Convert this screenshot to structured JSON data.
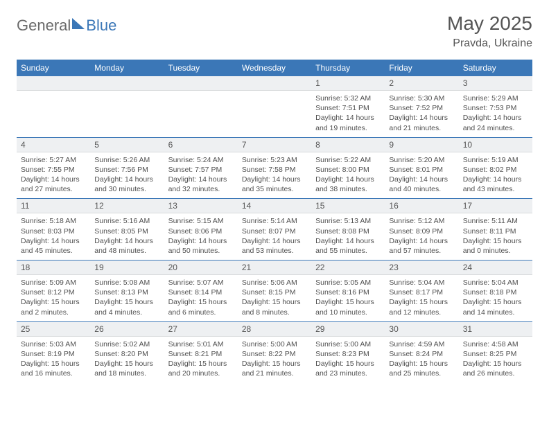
{
  "brand": {
    "part1": "General",
    "part2": "Blue"
  },
  "title": "May 2025",
  "location": "Pravda, Ukraine",
  "colors": {
    "accent": "#3b77b7",
    "header_text": "#ffffff",
    "daynum_bg": "#eef0f2",
    "text": "#505050",
    "title_text": "#555555",
    "background": "#ffffff"
  },
  "dayNames": [
    "Sunday",
    "Monday",
    "Tuesday",
    "Wednesday",
    "Thursday",
    "Friday",
    "Saturday"
  ],
  "weeks": [
    {
      "nums": [
        "",
        "",
        "",
        "",
        "1",
        "2",
        "3"
      ],
      "cells": [
        null,
        null,
        null,
        null,
        {
          "sunrise": "Sunrise: 5:32 AM",
          "sunset": "Sunset: 7:51 PM",
          "day1": "Daylight: 14 hours",
          "day2": "and 19 minutes."
        },
        {
          "sunrise": "Sunrise: 5:30 AM",
          "sunset": "Sunset: 7:52 PM",
          "day1": "Daylight: 14 hours",
          "day2": "and 21 minutes."
        },
        {
          "sunrise": "Sunrise: 5:29 AM",
          "sunset": "Sunset: 7:53 PM",
          "day1": "Daylight: 14 hours",
          "day2": "and 24 minutes."
        }
      ]
    },
    {
      "nums": [
        "4",
        "5",
        "6",
        "7",
        "8",
        "9",
        "10"
      ],
      "cells": [
        {
          "sunrise": "Sunrise: 5:27 AM",
          "sunset": "Sunset: 7:55 PM",
          "day1": "Daylight: 14 hours",
          "day2": "and 27 minutes."
        },
        {
          "sunrise": "Sunrise: 5:26 AM",
          "sunset": "Sunset: 7:56 PM",
          "day1": "Daylight: 14 hours",
          "day2": "and 30 minutes."
        },
        {
          "sunrise": "Sunrise: 5:24 AM",
          "sunset": "Sunset: 7:57 PM",
          "day1": "Daylight: 14 hours",
          "day2": "and 32 minutes."
        },
        {
          "sunrise": "Sunrise: 5:23 AM",
          "sunset": "Sunset: 7:58 PM",
          "day1": "Daylight: 14 hours",
          "day2": "and 35 minutes."
        },
        {
          "sunrise": "Sunrise: 5:22 AM",
          "sunset": "Sunset: 8:00 PM",
          "day1": "Daylight: 14 hours",
          "day2": "and 38 minutes."
        },
        {
          "sunrise": "Sunrise: 5:20 AM",
          "sunset": "Sunset: 8:01 PM",
          "day1": "Daylight: 14 hours",
          "day2": "and 40 minutes."
        },
        {
          "sunrise": "Sunrise: 5:19 AM",
          "sunset": "Sunset: 8:02 PM",
          "day1": "Daylight: 14 hours",
          "day2": "and 43 minutes."
        }
      ]
    },
    {
      "nums": [
        "11",
        "12",
        "13",
        "14",
        "15",
        "16",
        "17"
      ],
      "cells": [
        {
          "sunrise": "Sunrise: 5:18 AM",
          "sunset": "Sunset: 8:03 PM",
          "day1": "Daylight: 14 hours",
          "day2": "and 45 minutes."
        },
        {
          "sunrise": "Sunrise: 5:16 AM",
          "sunset": "Sunset: 8:05 PM",
          "day1": "Daylight: 14 hours",
          "day2": "and 48 minutes."
        },
        {
          "sunrise": "Sunrise: 5:15 AM",
          "sunset": "Sunset: 8:06 PM",
          "day1": "Daylight: 14 hours",
          "day2": "and 50 minutes."
        },
        {
          "sunrise": "Sunrise: 5:14 AM",
          "sunset": "Sunset: 8:07 PM",
          "day1": "Daylight: 14 hours",
          "day2": "and 53 minutes."
        },
        {
          "sunrise": "Sunrise: 5:13 AM",
          "sunset": "Sunset: 8:08 PM",
          "day1": "Daylight: 14 hours",
          "day2": "and 55 minutes."
        },
        {
          "sunrise": "Sunrise: 5:12 AM",
          "sunset": "Sunset: 8:09 PM",
          "day1": "Daylight: 14 hours",
          "day2": "and 57 minutes."
        },
        {
          "sunrise": "Sunrise: 5:11 AM",
          "sunset": "Sunset: 8:11 PM",
          "day1": "Daylight: 15 hours",
          "day2": "and 0 minutes."
        }
      ]
    },
    {
      "nums": [
        "18",
        "19",
        "20",
        "21",
        "22",
        "23",
        "24"
      ],
      "cells": [
        {
          "sunrise": "Sunrise: 5:09 AM",
          "sunset": "Sunset: 8:12 PM",
          "day1": "Daylight: 15 hours",
          "day2": "and 2 minutes."
        },
        {
          "sunrise": "Sunrise: 5:08 AM",
          "sunset": "Sunset: 8:13 PM",
          "day1": "Daylight: 15 hours",
          "day2": "and 4 minutes."
        },
        {
          "sunrise": "Sunrise: 5:07 AM",
          "sunset": "Sunset: 8:14 PM",
          "day1": "Daylight: 15 hours",
          "day2": "and 6 minutes."
        },
        {
          "sunrise": "Sunrise: 5:06 AM",
          "sunset": "Sunset: 8:15 PM",
          "day1": "Daylight: 15 hours",
          "day2": "and 8 minutes."
        },
        {
          "sunrise": "Sunrise: 5:05 AM",
          "sunset": "Sunset: 8:16 PM",
          "day1": "Daylight: 15 hours",
          "day2": "and 10 minutes."
        },
        {
          "sunrise": "Sunrise: 5:04 AM",
          "sunset": "Sunset: 8:17 PM",
          "day1": "Daylight: 15 hours",
          "day2": "and 12 minutes."
        },
        {
          "sunrise": "Sunrise: 5:04 AM",
          "sunset": "Sunset: 8:18 PM",
          "day1": "Daylight: 15 hours",
          "day2": "and 14 minutes."
        }
      ]
    },
    {
      "nums": [
        "25",
        "26",
        "27",
        "28",
        "29",
        "30",
        "31"
      ],
      "cells": [
        {
          "sunrise": "Sunrise: 5:03 AM",
          "sunset": "Sunset: 8:19 PM",
          "day1": "Daylight: 15 hours",
          "day2": "and 16 minutes."
        },
        {
          "sunrise": "Sunrise: 5:02 AM",
          "sunset": "Sunset: 8:20 PM",
          "day1": "Daylight: 15 hours",
          "day2": "and 18 minutes."
        },
        {
          "sunrise": "Sunrise: 5:01 AM",
          "sunset": "Sunset: 8:21 PM",
          "day1": "Daylight: 15 hours",
          "day2": "and 20 minutes."
        },
        {
          "sunrise": "Sunrise: 5:00 AM",
          "sunset": "Sunset: 8:22 PM",
          "day1": "Daylight: 15 hours",
          "day2": "and 21 minutes."
        },
        {
          "sunrise": "Sunrise: 5:00 AM",
          "sunset": "Sunset: 8:23 PM",
          "day1": "Daylight: 15 hours",
          "day2": "and 23 minutes."
        },
        {
          "sunrise": "Sunrise: 4:59 AM",
          "sunset": "Sunset: 8:24 PM",
          "day1": "Daylight: 15 hours",
          "day2": "and 25 minutes."
        },
        {
          "sunrise": "Sunrise: 4:58 AM",
          "sunset": "Sunset: 8:25 PM",
          "day1": "Daylight: 15 hours",
          "day2": "and 26 minutes."
        }
      ]
    }
  ]
}
